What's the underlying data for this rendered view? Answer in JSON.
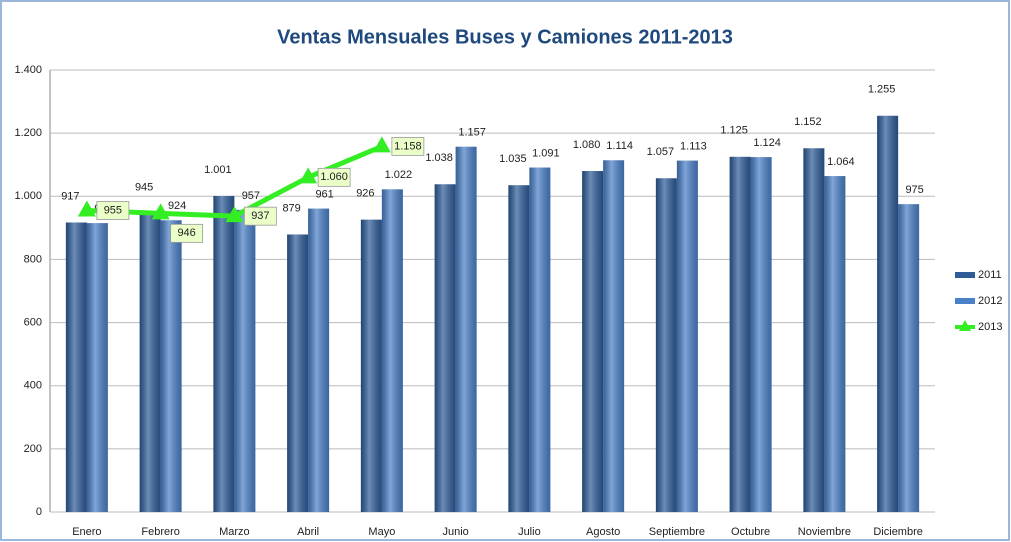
{
  "chart_data": {
    "type": "bar",
    "title": "Ventas Mensuales Buses y Camiones 2011-2013",
    "categories": [
      "Enero",
      "Febrero",
      "Marzo",
      "Abril",
      "Mayo",
      "Junio",
      "Julio",
      "Agosto",
      "Septiembre",
      "Octubre",
      "Noviembre",
      "Diciembre"
    ],
    "series": [
      {
        "name": "2011",
        "type": "bar",
        "color": "#2e5c99",
        "values": [
          917,
          945,
          1001,
          879,
          926,
          1038,
          1035,
          1080,
          1057,
          1125,
          1152,
          1255
        ],
        "value_labels": [
          "917",
          "945",
          "1.001",
          "879",
          "926",
          "1.038",
          "1.035",
          "1.080",
          "1.057",
          "1.125",
          "1.152",
          "1.255"
        ]
      },
      {
        "name": "2012",
        "type": "bar",
        "color": "#4a80c8",
        "values": [
          915,
          924,
          957,
          961,
          1022,
          1157,
          1091,
          1114,
          1113,
          1124,
          1064,
          975
        ],
        "value_labels": [
          "915",
          "924",
          "957",
          "961",
          "1.022",
          "1.157",
          "1.091",
          "1.114",
          "1.113",
          "1.124",
          "1.064",
          "975"
        ]
      },
      {
        "name": "2013",
        "type": "line",
        "color": "#33ee22",
        "values": [
          955,
          946,
          937,
          1060,
          1158,
          null,
          null,
          null,
          null,
          null,
          null,
          null
        ],
        "value_labels": [
          "955",
          "946",
          "937",
          "1.060",
          "1.158",
          null,
          null,
          null,
          null,
          null,
          null,
          null
        ]
      }
    ],
    "ylim": [
      0,
      1400
    ],
    "yticks": [
      0,
      200,
      400,
      600,
      800,
      {
        "value": 1000,
        "label": "1.000"
      },
      {
        "value": 1200,
        "label": "1.200"
      },
      {
        "value": 1400,
        "label": "1.400"
      }
    ],
    "grid": true,
    "legend": "right"
  }
}
